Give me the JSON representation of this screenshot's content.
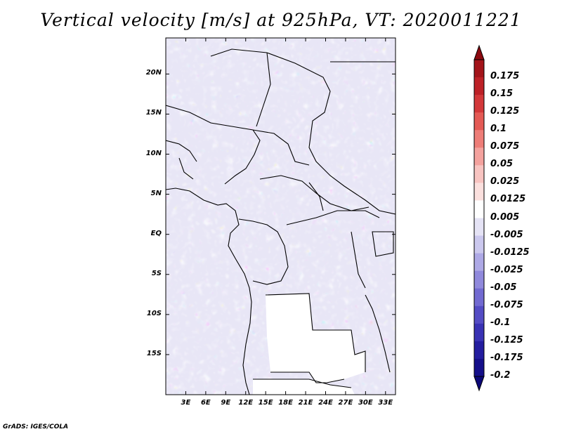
{
  "title": "Vertical velocity [m/s] at 925hPa, VT: 2020011221",
  "credit": "GrADS: IGES/COLA",
  "map": {
    "lat_labels": [
      "20N",
      "15N",
      "10N",
      "5N",
      "EQ",
      "5S",
      "10S",
      "15S"
    ],
    "lat_values": [
      20,
      15,
      10,
      5,
      0,
      -5,
      -10,
      -15
    ],
    "lon_labels": [
      "3E",
      "6E",
      "9E",
      "12E",
      "15E",
      "18E",
      "21E",
      "24E",
      "27E",
      "30E",
      "33E"
    ],
    "lon_values": [
      3,
      6,
      9,
      12,
      15,
      18,
      21,
      24,
      27,
      30,
      33
    ],
    "lon_range": [
      0,
      34.5
    ],
    "lat_range": [
      -20,
      24.5
    ]
  },
  "colorbar": {
    "labels": [
      "0.175",
      "0.15",
      "0.125",
      "0.1",
      "0.075",
      "0.05",
      "0.025",
      "0.0125",
      "0.005",
      "-0.005",
      "-0.0125",
      "-0.025",
      "-0.05",
      "-0.075",
      "-0.1",
      "-0.125",
      "-0.175",
      "-0.2"
    ],
    "colors": [
      "#a3141a",
      "#bd2127",
      "#d3383a",
      "#e45a55",
      "#ee7d78",
      "#f4a29e",
      "#f8c4c1",
      "#fbe0de",
      "#ffffff",
      "#e5e3f5",
      "#cbc8ee",
      "#aea9e6",
      "#9089dc",
      "#726ad1",
      "#544cc4",
      "#3932b4",
      "#241d9f",
      "#150f8a"
    ],
    "top_arrow_color": "#8c0a10",
    "bottom_arrow_color": "#0c0878"
  }
}
